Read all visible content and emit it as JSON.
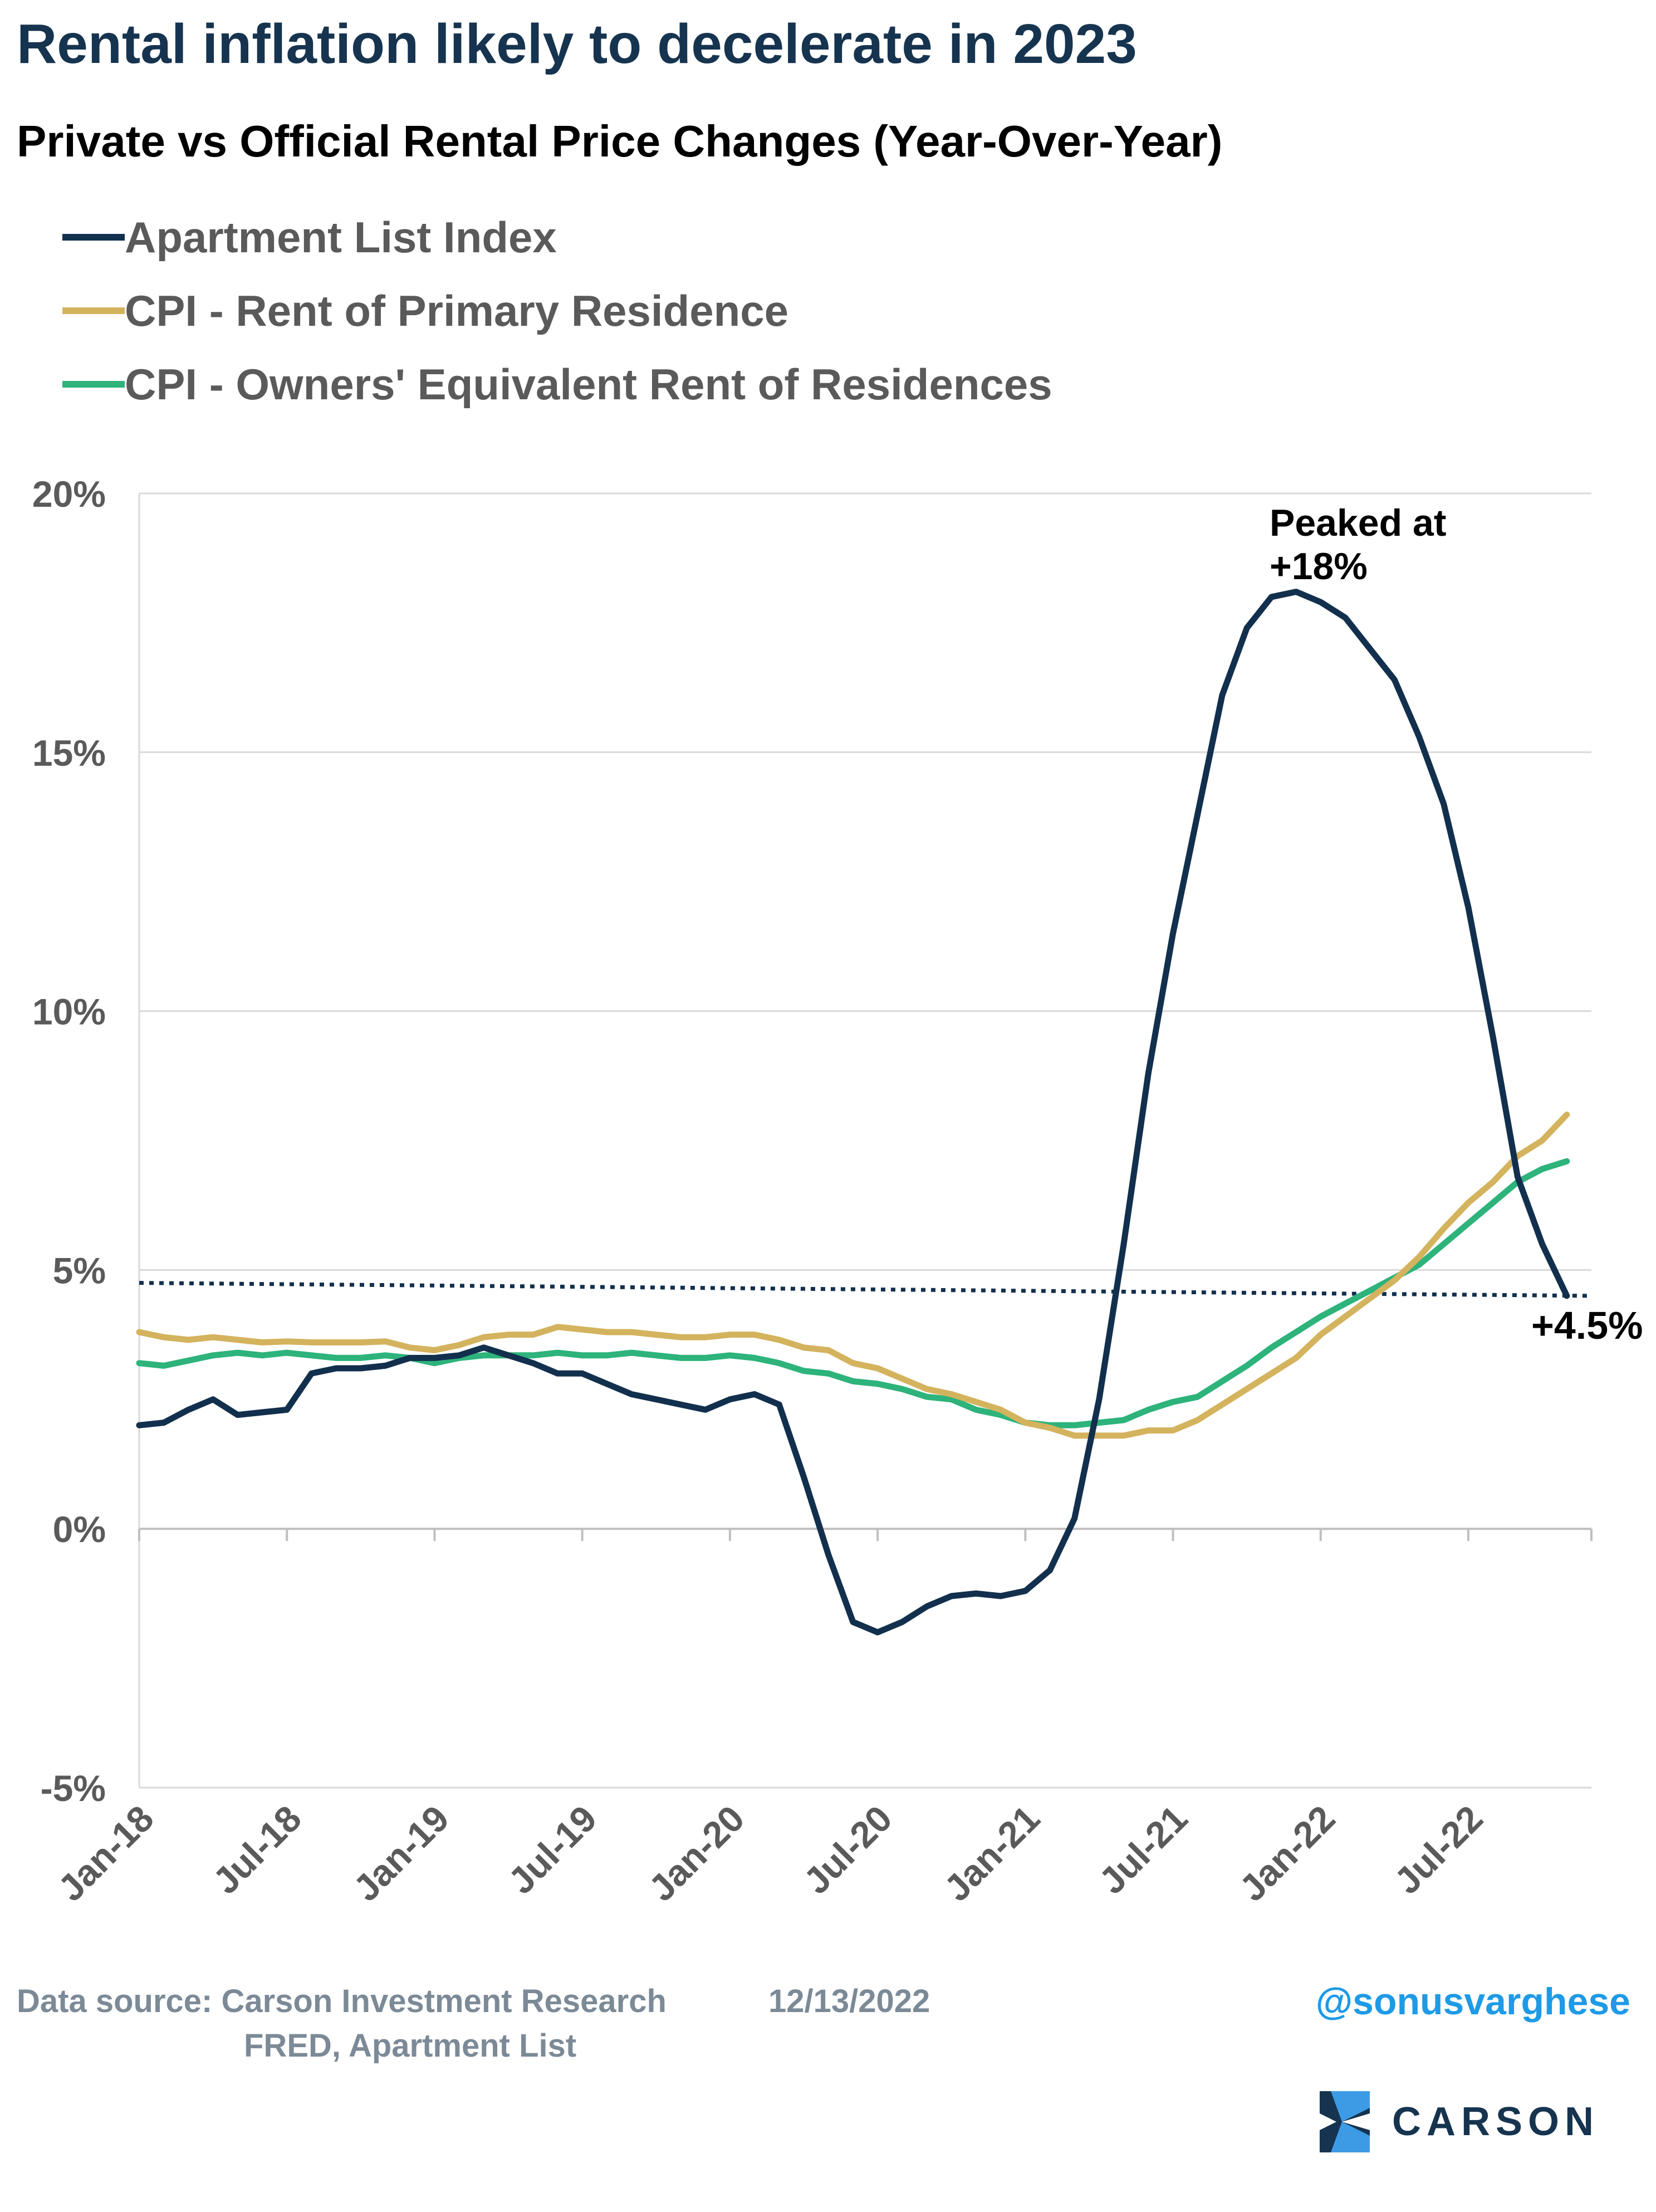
{
  "header": {
    "title": "Rental inflation likely to decelerate in 2023",
    "subtitle": "Private vs Official Rental Price Changes (Year-Over-Year)"
  },
  "legend": [
    {
      "label": "Apartment List Index",
      "color": "#12304d"
    },
    {
      "label": "CPI - Rent of Primary Residence",
      "color": "#d4b35e"
    },
    {
      "label": "CPI - Owners' Equivalent Rent of Residences",
      "color": "#2db37b"
    }
  ],
  "chart_data": {
    "type": "line",
    "ylim": [
      -5,
      20
    ],
    "yticks": [
      -5,
      0,
      5,
      10,
      15,
      20
    ],
    "ytick_labels": [
      "-5%",
      "0%",
      "5%",
      "10%",
      "15%",
      "20%"
    ],
    "x_start": "Jan-18",
    "x_end": "Dec-22",
    "xtick_labels": [
      "Jan-18",
      "Jul-18",
      "Jan-19",
      "Jul-19",
      "Jan-20",
      "Jul-20",
      "Jan-21",
      "Jul-21",
      "Jan-22",
      "Jul-22"
    ],
    "grid": "horizontal",
    "series": [
      {
        "name": "Apartment List Index",
        "color": "#12304d",
        "values": [
          2.0,
          2.05,
          2.3,
          2.5,
          2.2,
          2.25,
          2.3,
          3.0,
          3.1,
          3.1,
          3.15,
          3.3,
          3.3,
          3.35,
          3.5,
          3.35,
          3.2,
          3.0,
          3.0,
          2.8,
          2.6,
          2.5,
          2.4,
          2.3,
          2.5,
          2.6,
          2.4,
          1.0,
          -0.5,
          -1.8,
          -2.0,
          -1.8,
          -1.5,
          -1.3,
          -1.25,
          -1.3,
          -1.2,
          -0.8,
          0.2,
          2.5,
          5.5,
          8.8,
          11.5,
          13.8,
          16.1,
          17.4,
          18.0,
          18.1,
          17.9,
          17.6,
          17.0,
          16.4,
          15.3,
          14.0,
          12.0,
          9.5,
          6.8,
          5.5,
          4.5
        ]
      },
      {
        "name": "CPI - Rent of Primary Residence",
        "color": "#d4b35e",
        "values": [
          3.8,
          3.7,
          3.65,
          3.7,
          3.65,
          3.6,
          3.62,
          3.6,
          3.6,
          3.6,
          3.62,
          3.5,
          3.45,
          3.55,
          3.7,
          3.75,
          3.75,
          3.9,
          3.85,
          3.8,
          3.8,
          3.75,
          3.7,
          3.7,
          3.75,
          3.75,
          3.65,
          3.5,
          3.45,
          3.2,
          3.1,
          2.9,
          2.7,
          2.6,
          2.45,
          2.3,
          2.05,
          1.95,
          1.8,
          1.8,
          1.8,
          1.9,
          1.9,
          2.1,
          2.4,
          2.7,
          3.0,
          3.3,
          3.75,
          4.1,
          4.45,
          4.8,
          5.25,
          5.8,
          6.3,
          6.7,
          7.2,
          7.5,
          8.0
        ]
      },
      {
        "name": "CPI - Owners' Equivalent Rent of Residences",
        "color": "#2db37b",
        "values": [
          3.2,
          3.15,
          3.25,
          3.35,
          3.4,
          3.35,
          3.4,
          3.35,
          3.3,
          3.3,
          3.35,
          3.3,
          3.2,
          3.3,
          3.35,
          3.35,
          3.35,
          3.4,
          3.35,
          3.35,
          3.4,
          3.35,
          3.3,
          3.3,
          3.35,
          3.3,
          3.2,
          3.05,
          3.0,
          2.85,
          2.8,
          2.7,
          2.55,
          2.5,
          2.3,
          2.2,
          2.05,
          2.0,
          2.0,
          2.05,
          2.1,
          2.3,
          2.45,
          2.55,
          2.85,
          3.15,
          3.5,
          3.8,
          4.1,
          4.35,
          4.6,
          4.85,
          5.1,
          5.5,
          5.9,
          6.3,
          6.7,
          6.95,
          7.1
        ]
      }
    ],
    "reference_line": {
      "value": 4.5,
      "style": "dotted",
      "color": "#12304d"
    },
    "annotations": [
      {
        "text_lines": [
          "Peaked at",
          "+18%"
        ],
        "near": "peak of Apartment List Index"
      },
      {
        "text": "+4.5%",
        "near": "end of Apartment List Index"
      }
    ]
  },
  "footer": {
    "source_label": "Data source: Carson Investment Research",
    "date": "12/13/2022",
    "source_line2": "FRED, Apartment List",
    "handle": "@sonusvarghese",
    "logo_text": "CARSON"
  }
}
